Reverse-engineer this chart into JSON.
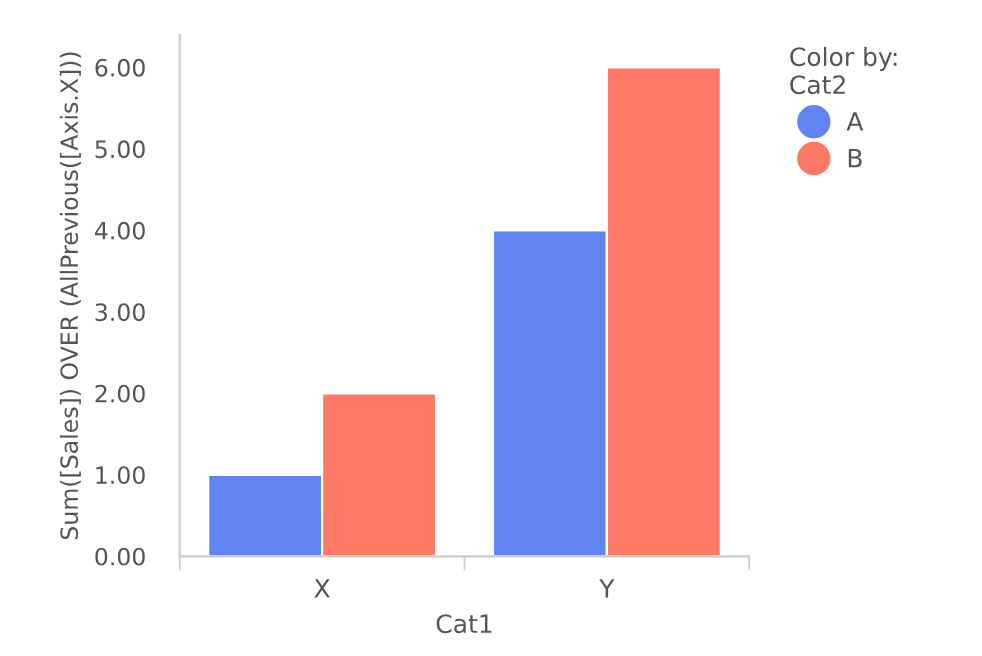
{
  "chart_data": {
    "type": "bar",
    "xlabel": "Cat1",
    "ylabel": "Sum([Sales]) OVER (AllPrevious([Axis.X]))",
    "legend_title": "Color by:\nCat2",
    "categories": [
      "X",
      "Y"
    ],
    "series": [
      {
        "name": "A",
        "color": "#6283f2",
        "values": [
          1,
          4
        ]
      },
      {
        "name": "B",
        "color": "#fd7865",
        "values": [
          2,
          6
        ]
      }
    ],
    "ylim": [
      0,
      6.4
    ],
    "yticks": [
      {
        "value": 0,
        "label": "0.00"
      },
      {
        "value": 1,
        "label": "1.00"
      },
      {
        "value": 2,
        "label": "2.00"
      },
      {
        "value": 3,
        "label": "3.00"
      },
      {
        "value": 4,
        "label": "4.00"
      },
      {
        "value": 5,
        "label": "5.00"
      },
      {
        "value": 6,
        "label": "6.00"
      }
    ],
    "grid": false,
    "legend": "right"
  }
}
